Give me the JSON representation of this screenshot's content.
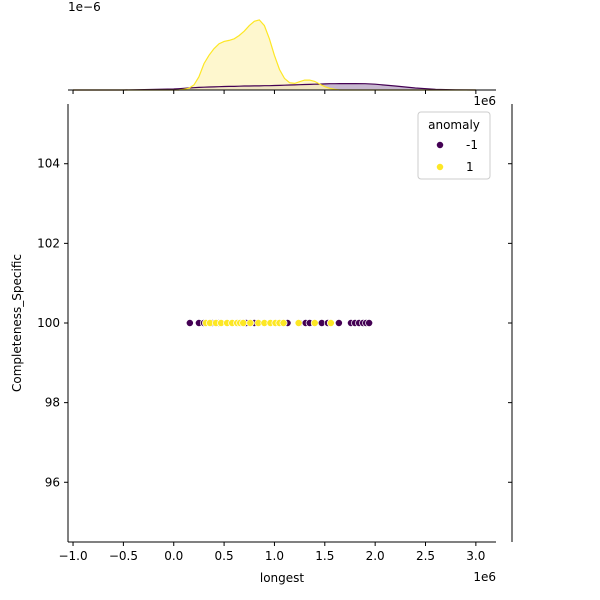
{
  "chart_data": {
    "type": "scatter",
    "title": "",
    "xlabel": "longest",
    "ylabel": "Completeness_Specific",
    "x_offset_label": "1e6",
    "marginal_offset_label": "1e−6",
    "xlim": [
      -1.05,
      3.2
    ],
    "ylim": [
      94.5,
      105.5
    ],
    "x_ticks": [
      -1.0,
      -0.5,
      0.0,
      0.5,
      1.0,
      1.5,
      2.0,
      2.5,
      3.0
    ],
    "x_tick_labels": [
      "−1.0",
      "−0.5",
      "0.0",
      "0.5",
      "1.0",
      "1.5",
      "2.0",
      "2.5",
      "3.0"
    ],
    "y_ticks": [
      96,
      98,
      100,
      102,
      104
    ],
    "y_tick_labels": [
      "96",
      "98",
      "100",
      "102",
      "104"
    ],
    "grid": false,
    "legend": {
      "title": "anomaly",
      "placement": "top-right",
      "entries": [
        {
          "label": "-1",
          "color": "#440154"
        },
        {
          "label": "1",
          "color": "#fde725"
        }
      ]
    },
    "series": [
      {
        "name": "-1",
        "color": "#440154",
        "x": [
          0.16,
          0.25,
          0.3,
          0.38,
          0.45,
          0.72,
          0.8,
          1.13,
          1.25,
          1.31,
          1.35,
          1.47,
          1.53,
          1.64,
          1.76,
          1.8,
          1.84,
          1.88,
          1.91,
          1.94
        ],
        "y": [
          100,
          100,
          100,
          100,
          100,
          100,
          100,
          100,
          100,
          100,
          100,
          100,
          100,
          100,
          100,
          100,
          100,
          100,
          100,
          100
        ]
      },
      {
        "name": "1",
        "color": "#fde725",
        "x": [
          0.32,
          0.36,
          0.42,
          0.47,
          0.53,
          0.58,
          0.63,
          0.66,
          0.69,
          0.76,
          0.84,
          0.9,
          0.96,
          1.01,
          1.05,
          1.09,
          1.24,
          1.4,
          1.56
        ],
        "y": [
          100,
          100,
          100,
          100,
          100,
          100,
          100,
          100,
          100,
          100,
          100,
          100,
          100,
          100,
          100,
          100,
          100,
          100,
          100
        ]
      }
    ],
    "marginal_density": {
      "grid_x": [
        -1.0,
        -0.5,
        0.0,
        0.05,
        0.1,
        0.15,
        0.2,
        0.25,
        0.3,
        0.35,
        0.4,
        0.45,
        0.5,
        0.55,
        0.6,
        0.65,
        0.7,
        0.75,
        0.8,
        0.85,
        0.9,
        0.95,
        1.0,
        1.05,
        1.1,
        1.15,
        1.2,
        1.25,
        1.3,
        1.35,
        1.4,
        1.45,
        1.5,
        1.55,
        1.6,
        1.65,
        1.7,
        1.8,
        1.9,
        2.0,
        2.2,
        2.4,
        2.6,
        2.8,
        3.0
      ],
      "series": [
        {
          "name": "-1",
          "color": "#440154",
          "fill": "#b4a0c0",
          "values": [
            0.0,
            0.0,
            0.03,
            0.04,
            0.05,
            0.06,
            0.07,
            0.08,
            0.085,
            0.09,
            0.095,
            0.1,
            0.105,
            0.11,
            0.11,
            0.115,
            0.12,
            0.12,
            0.125,
            0.125,
            0.13,
            0.13,
            0.135,
            0.14,
            0.145,
            0.15,
            0.155,
            0.16,
            0.165,
            0.17,
            0.175,
            0.18,
            0.185,
            0.19,
            0.19,
            0.195,
            0.195,
            0.195,
            0.19,
            0.175,
            0.12,
            0.06,
            0.02,
            0.005,
            0.0
          ]
        },
        {
          "name": "1",
          "color": "#fde725",
          "fill": "#fdf4bd",
          "values": [
            0.0,
            0.0,
            0.0,
            0.0,
            0.02,
            0.05,
            0.15,
            0.4,
            0.8,
            1.05,
            1.25,
            1.4,
            1.47,
            1.5,
            1.55,
            1.65,
            1.78,
            1.95,
            2.08,
            2.12,
            1.95,
            1.55,
            1.05,
            0.62,
            0.35,
            0.22,
            0.2,
            0.25,
            0.3,
            0.3,
            0.26,
            0.18,
            0.1,
            0.05,
            0.02,
            0.0,
            0.0,
            0.0,
            0.0,
            0.0,
            0.0,
            0.0,
            0.0,
            0.0,
            0.0
          ]
        }
      ],
      "ylim": [
        0,
        2.3
      ]
    }
  }
}
